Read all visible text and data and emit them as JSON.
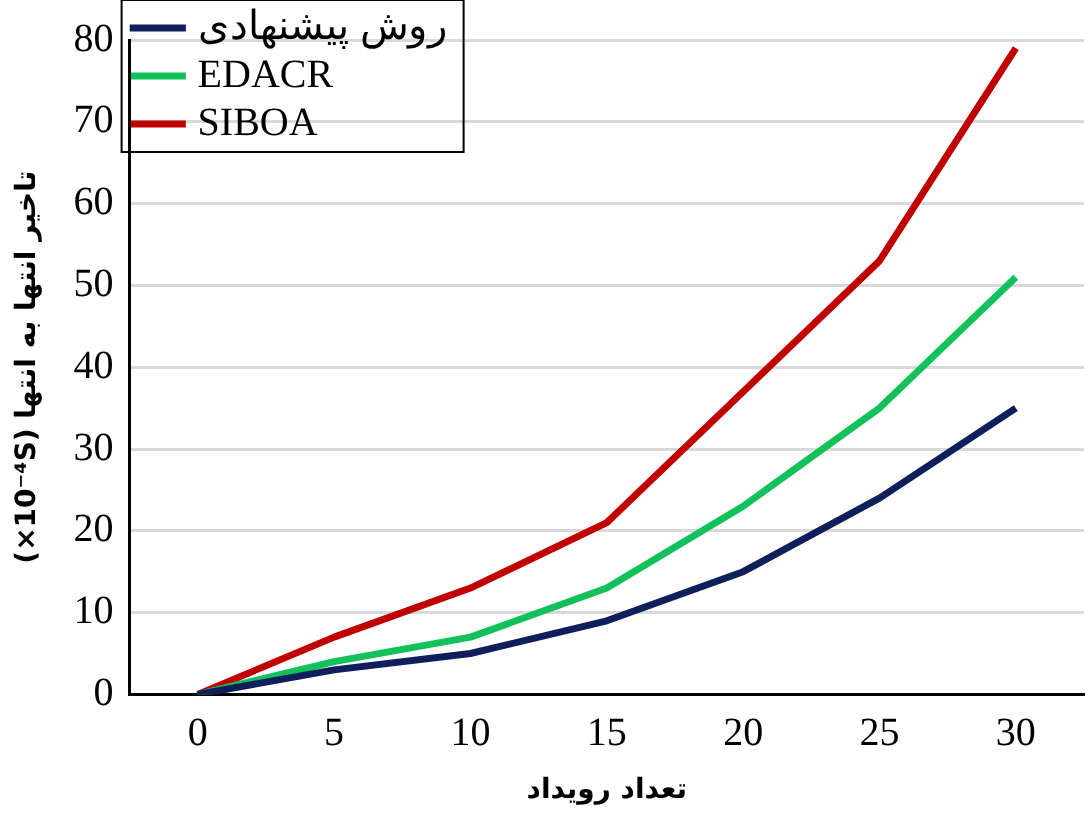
{
  "chart_data": {
    "type": "line",
    "xlabel": "تعداد رویداد",
    "ylabel": "تاخیر انتها به انتها (×10⁻⁴S)",
    "categories": [
      "0",
      "5",
      "10",
      "15",
      "20",
      "25",
      "30"
    ],
    "series": [
      {
        "name": "روش پیشنهادی",
        "color": "#0e1f5b",
        "values": [
          0,
          3,
          5,
          9,
          15,
          24,
          35
        ]
      },
      {
        "name": "EDACR",
        "color": "#13c15a",
        "values": [
          0,
          4,
          7,
          13,
          23,
          35,
          51
        ]
      },
      {
        "name": "SIBOA",
        "color": "#c00000",
        "values": [
          0,
          7,
          13,
          21,
          37,
          53,
          79
        ]
      }
    ],
    "ylim": [
      0,
      80
    ],
    "yticks": [
      0,
      10,
      20,
      30,
      40,
      50,
      60,
      70,
      80
    ],
    "grid": "y",
    "legend": "top left",
    "marker": "none",
    "line_style": "solid"
  }
}
